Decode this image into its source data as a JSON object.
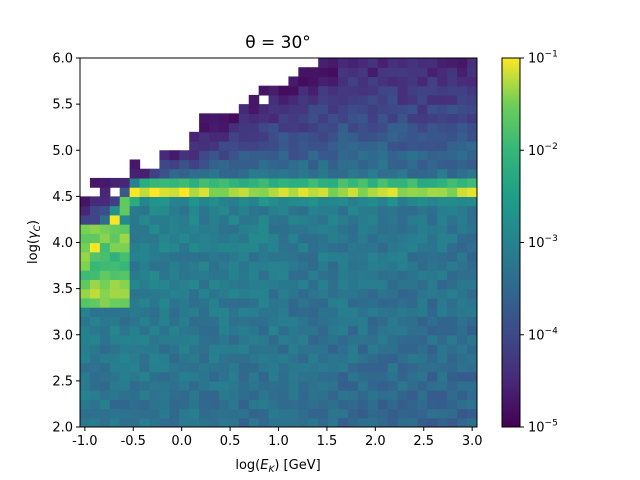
{
  "chart_data": {
    "type": "heatmap",
    "title": "θ = 30°",
    "xlabel": "log(E_K) [GeV]",
    "ylabel": "log(γ_C)",
    "xlim": [
      -1.05,
      3.05
    ],
    "ylim": [
      2.0,
      6.0
    ],
    "x_ticks": [
      "-1.0",
      "-0.5",
      "0.0",
      "0.5",
      "1.0",
      "1.5",
      "2.0",
      "2.5",
      "3.0"
    ],
    "y_ticks": [
      "2.0",
      "2.5",
      "3.0",
      "3.5",
      "4.0",
      "4.5",
      "5.0",
      "5.5",
      "6.0"
    ],
    "x_tick_values": [
      -1.0,
      -0.5,
      0.0,
      0.5,
      1.0,
      1.5,
      2.0,
      2.5,
      3.0
    ],
    "y_tick_values": [
      2.0,
      2.5,
      3.0,
      3.5,
      4.0,
      4.5,
      5.0,
      5.5,
      6.0
    ],
    "bins": {
      "x_count": 40,
      "y_count": 40
    },
    "colormap": "viridis",
    "colorbar": {
      "scale": "log",
      "range": [
        1e-05,
        0.1
      ],
      "ticks": [
        {
          "base": "10",
          "exp": "−1",
          "value": 0.1
        },
        {
          "base": "10",
          "exp": "−2",
          "value": 0.01
        },
        {
          "base": "10",
          "exp": "−3",
          "value": 0.001
        },
        {
          "base": "10",
          "exp": "−4",
          "value": 0.0001
        },
        {
          "base": "10",
          "exp": "−5",
          "value": 1e-05
        }
      ]
    },
    "features": {
      "ridge_log_gamma": 4.58,
      "ridge_peak_value": 0.1,
      "low_energy_peak_log_gamma": 3.8,
      "upper_edge": "sparse bins with values near 1e-5 above the populated band, rising from log(γ_C)≈4.4 at x=-1.0 to 6.0 at x≈2.0"
    }
  }
}
